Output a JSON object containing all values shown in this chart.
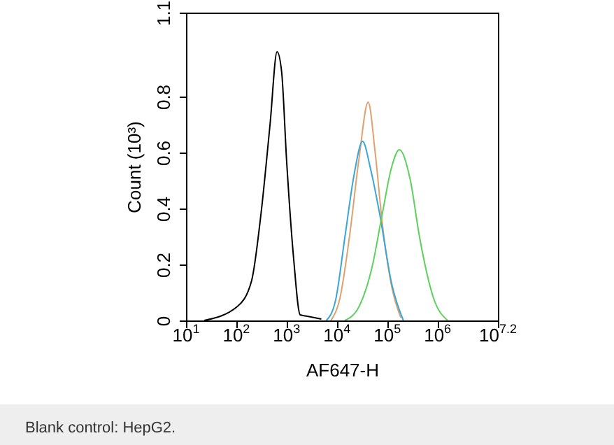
{
  "chart_data": {
    "type": "line",
    "xlabel": "AF647-H",
    "ylabel": "Count (10³)",
    "log": "x",
    "grid": false,
    "xlim": [
      10,
      15848932
    ],
    "xticks": [
      {
        "value": 10,
        "label": "10$^{1}$"
      },
      {
        "value": 100,
        "label": "10$^{2}$"
      },
      {
        "value": 1000,
        "label": "10$^{3}$"
      },
      {
        "value": 10000,
        "label": "10$^{4}$"
      },
      {
        "value": 100000,
        "label": "10$^{5}$"
      },
      {
        "value": 1000000,
        "label": "10$^{6}$"
      },
      {
        "value": 15848932,
        "label": "10$^{7.2}$"
      }
    ],
    "ylim": [
      0,
      1.1
    ],
    "yticks": [
      0,
      0.2,
      0.4,
      0.6,
      0.8,
      1.1
    ],
    "series": [
      {
        "color": "#000000",
        "x": [
          23,
          105,
          200,
          309,
          468,
          646,
          794,
          1000,
          1380,
          1862,
          2570,
          4898
        ],
        "values": [
          0,
          0.05,
          0.14,
          0.38,
          0.7,
          0.96,
          0.89,
          0.57,
          0.22,
          0.02,
          0.015,
          0.005
        ]
      },
      {
        "color": "#e0a070",
        "x": [
          7586,
          11480,
          17780,
          27540,
          41690,
          57540,
          79430,
          123000,
          186200
        ],
        "values": [
          0,
          0.08,
          0.3,
          0.58,
          0.78,
          0.6,
          0.35,
          0.12,
          0.01
        ]
      },
      {
        "color": "#3aa6d8",
        "x": [
          6166,
          9333,
          14450,
          21880,
          32360,
          46770,
          70790,
          123000,
          208900
        ],
        "values": [
          0,
          0.07,
          0.3,
          0.52,
          0.64,
          0.54,
          0.38,
          0.13,
          0
        ]
      },
      {
        "color": "#5ed05e",
        "x": [
          14450,
          27540,
          51290,
          79430,
          123000,
          173800,
          288400,
          436500,
          831800,
          1585000
        ],
        "values": [
          0,
          0.05,
          0.2,
          0.38,
          0.55,
          0.61,
          0.5,
          0.3,
          0.08,
          0
        ]
      }
    ],
    "annotations": [
      "Blank control: HepG2."
    ]
  }
}
